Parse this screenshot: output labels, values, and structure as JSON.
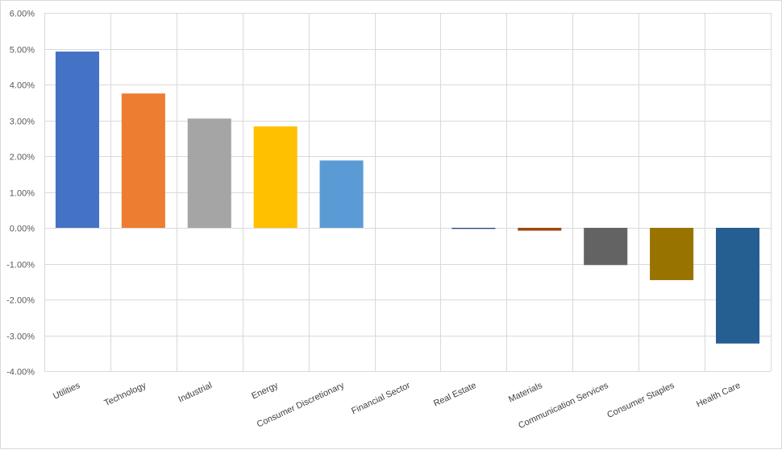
{
  "chart_data": {
    "type": "bar",
    "title": "",
    "xlabel": "",
    "ylabel": "",
    "ylim": [
      -4,
      6
    ],
    "ytick_step": 1,
    "ytick_format": "percent_2dp",
    "grid": "both",
    "legend": "none",
    "categories": [
      "Utilities",
      "Technology",
      "Industrial",
      "Energy",
      "Consumer Discretionary",
      "Financial Sector",
      "Real Estate",
      "Materials",
      "Communication Services",
      "Consumer Staples",
      "Health Care"
    ],
    "values": [
      4.92,
      3.75,
      3.05,
      2.83,
      1.88,
      0.0,
      -0.03,
      -0.08,
      -1.04,
      -1.46,
      -3.23
    ],
    "colors": [
      "#4472C4",
      "#ED7D31",
      "#A5A5A5",
      "#FFC000",
      "#5B9BD5",
      "#70AD47",
      "#264478",
      "#9E480E",
      "#636363",
      "#997300",
      "#255E91"
    ]
  }
}
